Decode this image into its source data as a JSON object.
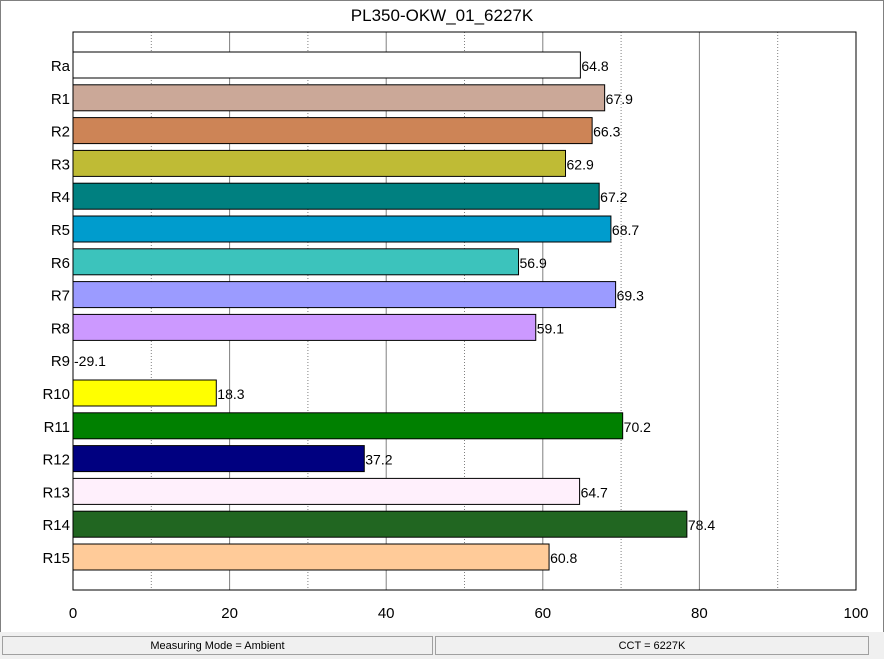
{
  "chart_data": {
    "type": "bar",
    "orientation": "horizontal",
    "title": "PL350-OKW_01_6227K",
    "categories": [
      "Ra",
      "R1",
      "R2",
      "R3",
      "R4",
      "R5",
      "R6",
      "R7",
      "R8",
      "R9",
      "R10",
      "R11",
      "R12",
      "R13",
      "R14",
      "R15"
    ],
    "values": [
      64.8,
      67.9,
      66.3,
      62.9,
      67.2,
      68.7,
      56.9,
      69.3,
      59.1,
      -29.1,
      18.3,
      70.2,
      37.2,
      64.7,
      78.4,
      60.8
    ],
    "value_labels": [
      "64.8",
      "67.9",
      "66.3",
      "62.9",
      "67.2",
      "68.7",
      "56.9",
      "69.3",
      "59.1",
      "-29.1",
      "18.3",
      "70.2",
      "37.2",
      "64.7",
      "78.4",
      "60.8"
    ],
    "colors": [
      "#ffffff",
      "#cba898",
      "#cd8456",
      "#bfbb35",
      "#008080",
      "#009ccd",
      "#3cc3bc",
      "#9b9bff",
      "#cc99ff",
      "#ff0000",
      "#ffff00",
      "#008000",
      "#000080",
      "#fff0fc",
      "#216621",
      "#ffcb99"
    ],
    "xlim": [
      0,
      100
    ],
    "xticks": [
      "0",
      "20",
      "40",
      "60",
      "80",
      "100"
    ],
    "grid": true,
    "xlabel": "",
    "ylabel": ""
  },
  "status": {
    "mode": "Measuring Mode = Ambient",
    "cct": "CCT = 6227K"
  }
}
